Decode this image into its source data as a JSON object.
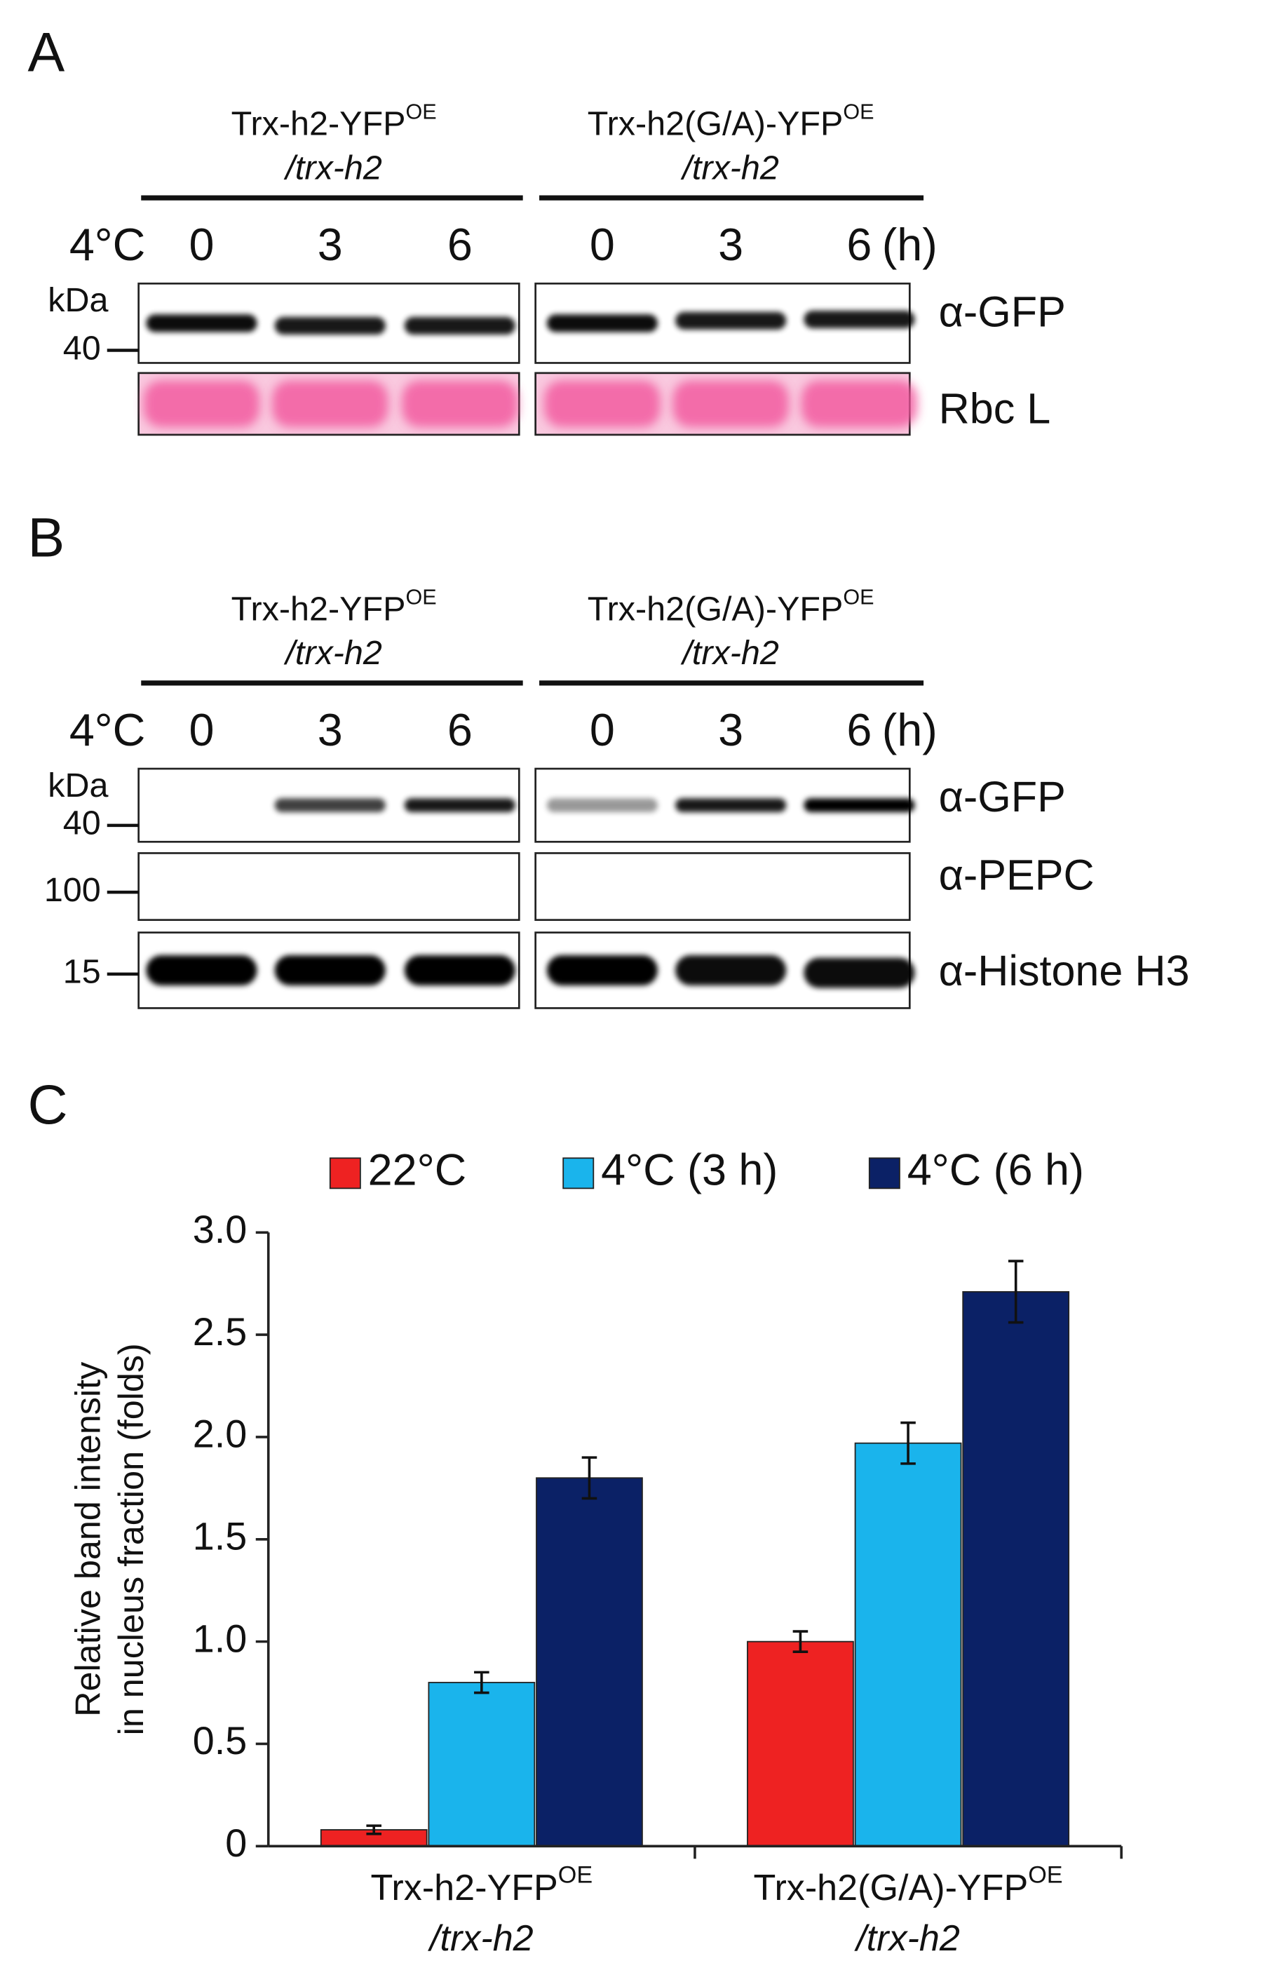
{
  "blots": [
    {
      "letter": "A",
      "groups": [
        {
          "name": "Trx-h2-YFP",
          "sup": "OE",
          "line2": "/trx-h2"
        },
        {
          "name": "Trx-h2(G/A)-YFP",
          "sup": "OE",
          "line2": "/trx-h2"
        }
      ],
      "time_label": "4°C",
      "times": [
        "0",
        "3",
        "6",
        "0",
        "3",
        "6"
      ],
      "time_unit": "(h)",
      "kda": "kDa",
      "rows": [
        {
          "label": "α-GFP",
          "marker": "40"
        },
        {
          "label": "Rbc L"
        }
      ]
    },
    {
      "letter": "B",
      "groups": [
        {
          "name": "Trx-h2-YFP",
          "sup": "OE",
          "line2": "/trx-h2"
        },
        {
          "name": "Trx-h2(G/A)-YFP",
          "sup": "OE",
          "line2": "/trx-h2"
        }
      ],
      "time_label": "4°C",
      "times": [
        "0",
        "3",
        "6",
        "0",
        "3",
        "6"
      ],
      "time_unit": "(h)",
      "kda": "kDa",
      "rows": [
        {
          "label": "α-GFP",
          "marker": "40"
        },
        {
          "label": "α-PEPC",
          "marker": "100"
        },
        {
          "label": "α-Histone H3",
          "marker": "15"
        }
      ]
    }
  ],
  "chart_data": {
    "type": "bar",
    "letter": "C",
    "y_label": [
      "Relative band intensity",
      "in nucleus fraction (folds)"
    ],
    "categories": [
      "Trx-h2-YFP",
      "Trx-h2(G/A)-YFP"
    ],
    "category_superscripts": [
      "OE",
      "OE"
    ],
    "category_sublines": [
      "/trx-h2",
      "/trx-h2"
    ],
    "series": [
      {
        "name": "22°C",
        "color": "#ee2222",
        "values": [
          0.08,
          1.0
        ],
        "errors": [
          0.02,
          0.05
        ]
      },
      {
        "name": "4°C (3 h)",
        "color": "#1ab4ec",
        "values": [
          0.8,
          1.97
        ],
        "errors": [
          0.05,
          0.1
        ]
      },
      {
        "name": "4°C (6 h)",
        "color": "#0b2166",
        "values": [
          1.8,
          2.71
        ],
        "errors": [
          0.1,
          0.15
        ]
      }
    ],
    "ylim": [
      0,
      3
    ],
    "yticks": [
      0,
      0.5,
      {
        "value": 1,
        "label": "1.0"
      },
      1.5,
      {
        "value": 2,
        "label": "2.0"
      },
      2.5,
      {
        "value": 3,
        "label": "3.0"
      }
    ]
  }
}
